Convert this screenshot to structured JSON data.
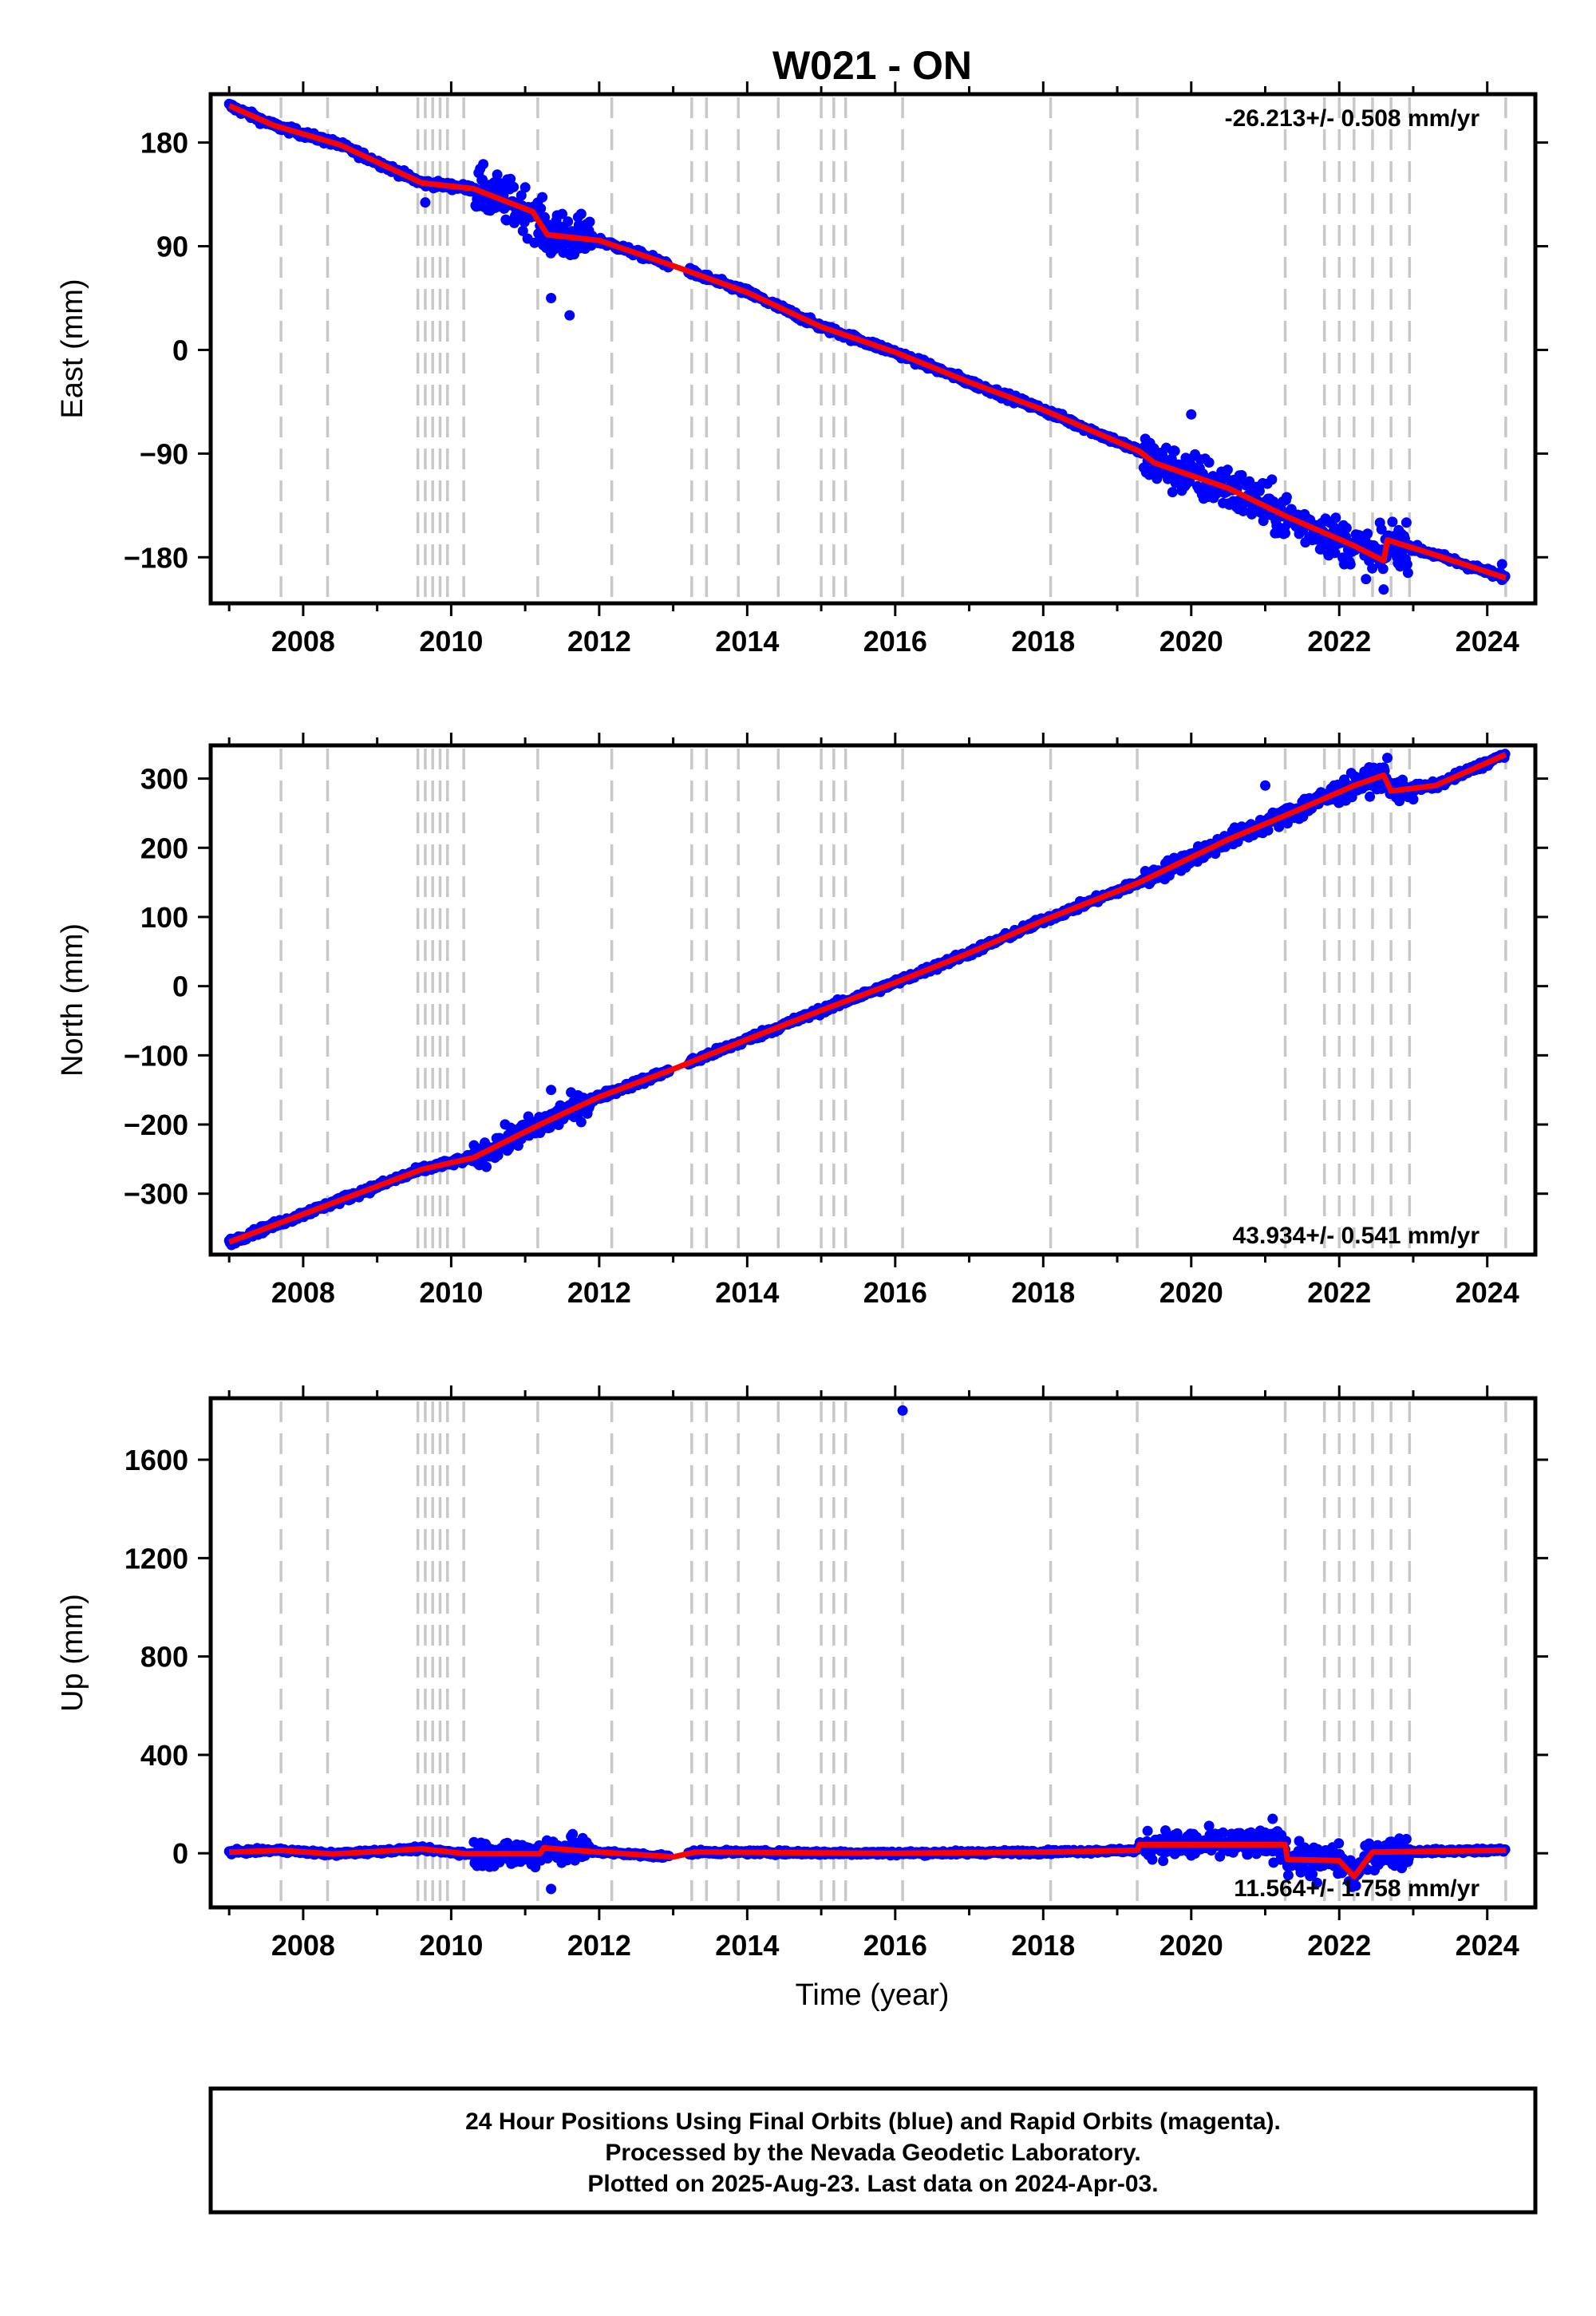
{
  "chart_data": {
    "title": "W021 - ON",
    "xlabel": "Time (year)",
    "x_ticks": [
      "2008",
      "2010",
      "2012",
      "2014",
      "2016",
      "2018",
      "2020",
      "2022",
      "2024"
    ],
    "xlim": [
      2006.75,
      2024.65
    ],
    "colors": {
      "final_orbits": "#0000ff",
      "model": "#ff0000",
      "event_lines": "#c8c8c8",
      "frame": "#000000"
    },
    "event_lines": [
      2007.7,
      2008.33,
      2009.55,
      2009.65,
      2009.75,
      2009.85,
      2009.95,
      2010.17,
      2011.17,
      2012.17,
      2013.25,
      2013.45,
      2013.88,
      2014.42,
      2015.0,
      2015.17,
      2015.33,
      2016.1,
      2018.1,
      2019.27,
      2021.27,
      2021.8,
      2022.0,
      2022.2,
      2022.45,
      2022.7,
      2022.95,
      2024.25
    ],
    "panels": [
      {
        "type": "scatter",
        "ylabel": "East (mm)",
        "y_ticks": [
          "180",
          "90",
          "0",
          "−90",
          "−180"
        ],
        "y_tick_values": [
          180,
          90,
          0,
          -90,
          -180
        ],
        "ylim": [
          -220,
          222
        ],
        "rate_label": "-26.213+/- 0.508 mm/yr",
        "rate_position": "top-right",
        "trend": [
          [
            2007.0,
            212
          ],
          [
            2007.6,
            195
          ],
          [
            2008.5,
            178
          ],
          [
            2009.6,
            145
          ],
          [
            2010.3,
            140
          ],
          [
            2011.1,
            120
          ],
          [
            2011.3,
            100
          ],
          [
            2012.0,
            95
          ],
          [
            2013.0,
            73
          ],
          [
            2014.0,
            50
          ],
          [
            2015.0,
            20
          ],
          [
            2016.0,
            -2
          ],
          [
            2017.0,
            -28
          ],
          [
            2018.0,
            -52
          ],
          [
            2019.3,
            -88
          ],
          [
            2019.5,
            -98
          ],
          [
            2020.5,
            -120
          ],
          [
            2021.3,
            -145
          ],
          [
            2022.2,
            -170
          ],
          [
            2022.6,
            -183
          ],
          [
            2022.65,
            -165
          ],
          [
            2023.3,
            -178
          ],
          [
            2024.25,
            -198
          ]
        ],
        "outliers": [
          [
            2011.35,
            45
          ],
          [
            2011.6,
            30
          ],
          [
            2011.5,
            118
          ],
          [
            2020.0,
            -56
          ],
          [
            2022.6,
            -208
          ],
          [
            2022.55,
            -150
          ],
          [
            2009.65,
            128
          ],
          [
            2024.2,
            -186
          ]
        ]
      },
      {
        "type": "scatter",
        "ylabel": "North (mm)",
        "y_ticks": [
          "300",
          "200",
          "100",
          "0",
          "−100",
          "−200",
          "−300"
        ],
        "y_tick_values": [
          300,
          200,
          100,
          0,
          -100,
          -200,
          -300
        ],
        "ylim": [
          -388,
          348
        ],
        "rate_label": "43.934+/- 0.541 mm/yr",
        "rate_position": "bottom-right",
        "trend": [
          [
            2007.0,
            -370
          ],
          [
            2009.6,
            -265
          ],
          [
            2010.3,
            -248
          ],
          [
            2011.2,
            -200
          ],
          [
            2012.0,
            -160
          ],
          [
            2013.0,
            -120
          ],
          [
            2014.0,
            -77
          ],
          [
            2015.0,
            -35
          ],
          [
            2016.0,
            5
          ],
          [
            2017.0,
            48
          ],
          [
            2018.0,
            95
          ],
          [
            2019.3,
            150
          ],
          [
            2020.5,
            212
          ],
          [
            2021.3,
            248
          ],
          [
            2022.2,
            290
          ],
          [
            2022.6,
            305
          ],
          [
            2022.7,
            282
          ],
          [
            2023.3,
            290
          ],
          [
            2024.25,
            335
          ]
        ],
        "outliers": [
          [
            2011.35,
            -150
          ],
          [
            2021.0,
            290
          ],
          [
            2022.65,
            330
          ],
          [
            2023.0,
            270
          ]
        ]
      },
      {
        "type": "scatter",
        "ylabel": "Up (mm)",
        "y_ticks": [
          "1600",
          "1200",
          "800",
          "400",
          "0"
        ],
        "y_tick_values": [
          1600,
          1200,
          800,
          400,
          0
        ],
        "ylim": [
          -220,
          1850
        ],
        "rate_label": "11.564+/- 1.758 mm/yr",
        "rate_position": "bottom-right",
        "trend": [
          [
            2007.0,
            5
          ],
          [
            2007.7,
            12
          ],
          [
            2008.4,
            -3
          ],
          [
            2009.6,
            18
          ],
          [
            2010.2,
            -2
          ],
          [
            2011.2,
            -2
          ],
          [
            2011.25,
            22
          ],
          [
            2012.0,
            5
          ],
          [
            2013.0,
            -15
          ],
          [
            2013.3,
            5
          ],
          [
            2016.0,
            0
          ],
          [
            2018.0,
            5
          ],
          [
            2019.27,
            12
          ],
          [
            2019.3,
            35
          ],
          [
            2021.27,
            35
          ],
          [
            2021.3,
            -25
          ],
          [
            2022.0,
            -30
          ],
          [
            2022.2,
            -95
          ],
          [
            2022.45,
            5
          ],
          [
            2024.25,
            12
          ]
        ],
        "outliers": [
          [
            2016.1,
            1800
          ],
          [
            2011.35,
            -145
          ],
          [
            2021.1,
            140
          ],
          [
            2021.7,
            -120
          ]
        ]
      }
    ]
  },
  "footer": {
    "line1": "24 Hour Positions Using Final Orbits (blue) and Rapid Orbits (magenta).",
    "line2": "Processed by the Nevada Geodetic Laboratory.",
    "line3": "Plotted on 2025-Aug-23. Last data on 2024-Apr-03."
  }
}
